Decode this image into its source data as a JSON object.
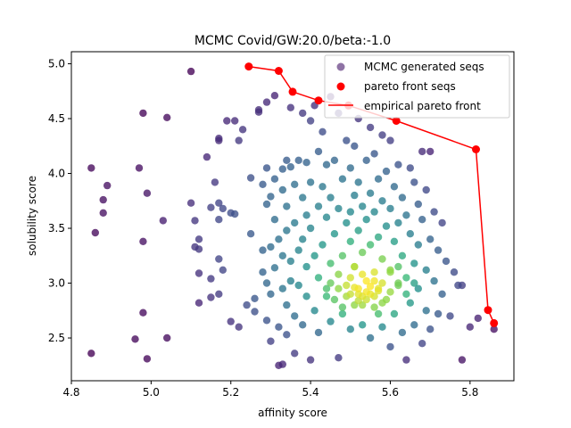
{
  "chart_data": {
    "type": "scatter",
    "title": "MCMC Covid/GW:20.0/beta:-1.0",
    "xlabel": "affinity score",
    "ylabel": "solubility score",
    "xlim": [
      4.8,
      5.91
    ],
    "ylim": [
      2.11,
      5.11
    ],
    "xticks": [
      "4.8",
      "5.0",
      "5.2",
      "5.4",
      "5.6",
      "5.8"
    ],
    "yticks": [
      "2.5",
      "3.0",
      "3.5",
      "4.0",
      "4.5",
      "5.0"
    ],
    "legend_position": "top-right",
    "grid": false,
    "colormap": "viridis",
    "colors": {
      "pareto": "#ff0000",
      "legend_scatter": "#7b5a95",
      "axes": "#000000"
    },
    "series": [
      {
        "name": "MCMC generated seqs",
        "kind": "scatter",
        "color_by_density": true,
        "points": [
          [
            4.85,
            4.05
          ],
          [
            4.86,
            3.46
          ],
          [
            4.85,
            2.36
          ],
          [
            4.88,
            3.76
          ],
          [
            4.88,
            3.64
          ],
          [
            4.89,
            3.89
          ],
          [
            4.96,
            2.49
          ],
          [
            4.97,
            4.05
          ],
          [
            4.98,
            4.55
          ],
          [
            4.98,
            3.38
          ],
          [
            4.98,
            2.73
          ],
          [
            4.99,
            3.82
          ],
          [
            4.99,
            2.31
          ],
          [
            5.03,
            3.57
          ],
          [
            5.04,
            4.51
          ],
          [
            5.04,
            2.5
          ],
          [
            5.1,
            4.93
          ],
          [
            5.1,
            3.73
          ],
          [
            5.11,
            3.57
          ],
          [
            5.11,
            3.33
          ],
          [
            5.12,
            3.31
          ],
          [
            5.12,
            2.82
          ],
          [
            5.12,
            3.09
          ],
          [
            5.12,
            3.4
          ],
          [
            5.14,
            4.15
          ],
          [
            5.15,
            3.04
          ],
          [
            5.15,
            3.69
          ],
          [
            5.15,
            2.87
          ],
          [
            5.16,
            3.92
          ],
          [
            5.17,
            4.32
          ],
          [
            5.17,
            4.3
          ],
          [
            5.17,
            3.73
          ],
          [
            5.17,
            3.58
          ],
          [
            5.17,
            3.22
          ],
          [
            5.17,
            2.9
          ],
          [
            5.18,
            3.68
          ],
          [
            5.18,
            3.12
          ],
          [
            5.19,
            4.48
          ],
          [
            5.2,
            2.65
          ],
          [
            5.2,
            3.64
          ],
          [
            5.21,
            4.48
          ],
          [
            5.21,
            3.63
          ],
          [
            5.22,
            4.3
          ],
          [
            5.22,
            2.6
          ],
          [
            5.23,
            4.4
          ],
          [
            5.24,
            2.8
          ],
          [
            5.25,
            3.96
          ],
          [
            5.25,
            3.45
          ],
          [
            5.26,
            2.86
          ],
          [
            5.26,
            2.74
          ],
          [
            5.27,
            4.58
          ],
          [
            5.27,
            4.56
          ],
          [
            5.28,
            3.9
          ],
          [
            5.28,
            3.3
          ],
          [
            5.28,
            3.1
          ],
          [
            5.29,
            4.65
          ],
          [
            5.29,
            4.05
          ],
          [
            5.29,
            3.72
          ],
          [
            5.29,
            3.0
          ],
          [
            5.29,
            2.66
          ],
          [
            5.3,
            3.79
          ],
          [
            5.3,
            3.33
          ],
          [
            5.3,
            2.9
          ],
          [
            5.3,
            2.47
          ],
          [
            5.31,
            4.71
          ],
          [
            5.31,
            3.95
          ],
          [
            5.31,
            3.58
          ],
          [
            5.31,
            3.14
          ],
          [
            5.32,
            2.25
          ],
          [
            5.32,
            2.6
          ],
          [
            5.32,
            3.4
          ],
          [
            5.33,
            4.04
          ],
          [
            5.33,
            3.85
          ],
          [
            5.33,
            3.25
          ],
          [
            5.33,
            2.95
          ],
          [
            5.33,
            2.26
          ],
          [
            5.34,
            4.12
          ],
          [
            5.34,
            3.7
          ],
          [
            5.34,
            3.48
          ],
          [
            5.34,
            2.8
          ],
          [
            5.34,
            2.53
          ],
          [
            5.35,
            4.6
          ],
          [
            5.35,
            4.06
          ],
          [
            5.35,
            3.2
          ],
          [
            5.35,
            3.02
          ],
          [
            5.36,
            3.9
          ],
          [
            5.36,
            3.55
          ],
          [
            5.36,
            2.7
          ],
          [
            5.36,
            2.36
          ],
          [
            5.37,
            4.12
          ],
          [
            5.37,
            3.3
          ],
          [
            5.37,
            2.98
          ],
          [
            5.38,
            4.55
          ],
          [
            5.38,
            3.78
          ],
          [
            5.38,
            3.4
          ],
          [
            5.38,
            2.62
          ],
          [
            5.39,
            4.1
          ],
          [
            5.39,
            3.62
          ],
          [
            5.39,
            3.15
          ],
          [
            5.39,
            2.88
          ],
          [
            5.4,
            4.48
          ],
          [
            5.4,
            3.92
          ],
          [
            5.4,
            3.5
          ],
          [
            5.4,
            2.3
          ],
          [
            5.41,
            4.62
          ],
          [
            5.41,
            3.25
          ],
          [
            5.41,
            2.75
          ],
          [
            5.42,
            4.2
          ],
          [
            5.42,
            3.7
          ],
          [
            5.42,
            3.05
          ],
          [
            5.42,
            2.55
          ],
          [
            5.43,
            4.38
          ],
          [
            5.43,
            3.88
          ],
          [
            5.43,
            3.35
          ],
          [
            5.44,
            4.08
          ],
          [
            5.44,
            3.6
          ],
          [
            5.44,
            2.95
          ],
          [
            5.45,
            4.7
          ],
          [
            5.45,
            3.78
          ],
          [
            5.45,
            3.18
          ],
          [
            5.45,
            2.65
          ],
          [
            5.46,
            4.12
          ],
          [
            5.46,
            3.45
          ],
          [
            5.46,
            2.85
          ],
          [
            5.47,
            4.55
          ],
          [
            5.47,
            3.68
          ],
          [
            5.47,
            3.08
          ],
          [
            5.47,
            2.32
          ],
          [
            5.48,
            3.95
          ],
          [
            5.48,
            3.25
          ],
          [
            5.48,
            2.72
          ],
          [
            5.49,
            4.3
          ],
          [
            5.49,
            3.55
          ],
          [
            5.49,
            2.98
          ],
          [
            5.5,
            4.05
          ],
          [
            5.5,
            3.65
          ],
          [
            5.5,
            3.38
          ],
          [
            5.5,
            2.58
          ],
          [
            5.51,
            4.25
          ],
          [
            5.51,
            3.8
          ],
          [
            5.51,
            3.15
          ],
          [
            5.51,
            2.8
          ],
          [
            5.52,
            4.5
          ],
          [
            5.52,
            3.92
          ],
          [
            5.52,
            3.48
          ],
          [
            5.52,
            2.9
          ],
          [
            5.53,
            3.7
          ],
          [
            5.53,
            3.28
          ],
          [
            5.53,
            2.62
          ],
          [
            5.54,
            4.12
          ],
          [
            5.54,
            3.58
          ],
          [
            5.54,
            3.02
          ],
          [
            5.55,
            4.42
          ],
          [
            5.55,
            3.82
          ],
          [
            5.55,
            3.35
          ],
          [
            5.55,
            2.5
          ],
          [
            5.56,
            4.18
          ],
          [
            5.56,
            3.65
          ],
          [
            5.56,
            3.1
          ],
          [
            5.56,
            2.78
          ],
          [
            5.57,
            3.95
          ],
          [
            5.57,
            3.42
          ],
          [
            5.57,
            2.95
          ],
          [
            5.58,
            4.35
          ],
          [
            5.58,
            3.75
          ],
          [
            5.58,
            3.22
          ],
          [
            5.58,
            2.6
          ],
          [
            5.59,
            4.02
          ],
          [
            5.59,
            3.52
          ],
          [
            5.59,
            2.85
          ],
          [
            5.6,
            4.3
          ],
          [
            5.6,
            3.68
          ],
          [
            5.6,
            3.12
          ],
          [
            5.6,
            2.42
          ],
          [
            5.61,
            3.88
          ],
          [
            5.61,
            3.38
          ],
          [
            5.61,
            2.72
          ],
          [
            5.62,
            4.08
          ],
          [
            5.62,
            3.55
          ],
          [
            5.62,
            2.98
          ],
          [
            5.63,
            3.78
          ],
          [
            5.63,
            3.25
          ],
          [
            5.63,
            2.55
          ],
          [
            5.64,
            3.62
          ],
          [
            5.64,
            3.05
          ],
          [
            5.64,
            2.3
          ],
          [
            5.65,
            4.05
          ],
          [
            5.65,
            3.45
          ],
          [
            5.65,
            2.82
          ],
          [
            5.66,
            3.92
          ],
          [
            5.66,
            3.18
          ],
          [
            5.66,
            2.62
          ],
          [
            5.67,
            3.72
          ],
          [
            5.67,
            3.35
          ],
          [
            5.67,
            2.95
          ],
          [
            5.68,
            4.2
          ],
          [
            5.68,
            3.58
          ],
          [
            5.68,
            2.45
          ],
          [
            5.69,
            3.85
          ],
          [
            5.69,
            3.12
          ],
          [
            5.69,
            2.75
          ],
          [
            5.7,
            4.2
          ],
          [
            5.7,
            3.4
          ],
          [
            5.7,
            2.58
          ],
          [
            5.71,
            3.65
          ],
          [
            5.71,
            3.02
          ],
          [
            5.72,
            3.3
          ],
          [
            5.72,
            2.72
          ],
          [
            5.73,
            3.55
          ],
          [
            5.73,
            2.9
          ],
          [
            5.74,
            3.2
          ],
          [
            5.75,
            2.7
          ],
          [
            5.76,
            3.1
          ],
          [
            5.77,
            2.98
          ],
          [
            5.78,
            2.3
          ],
          [
            5.78,
            2.98
          ],
          [
            5.8,
            2.6
          ],
          [
            5.82,
            2.68
          ],
          [
            5.86,
            2.58
          ],
          [
            5.5,
            2.9
          ],
          [
            5.52,
            2.95
          ],
          [
            5.53,
            2.88
          ],
          [
            5.54,
            2.92
          ],
          [
            5.54,
            2.85
          ],
          [
            5.55,
            2.9
          ],
          [
            5.55,
            2.97
          ],
          [
            5.56,
            2.88
          ],
          [
            5.53,
            2.8
          ],
          [
            5.51,
            2.96
          ],
          [
            5.57,
            2.93
          ],
          [
            5.52,
            2.84
          ],
          [
            5.58,
            3.0
          ],
          [
            5.49,
            2.88
          ],
          [
            5.56,
            3.02
          ],
          [
            5.5,
            3.05
          ],
          [
            5.6,
            2.92
          ],
          [
            5.47,
            2.95
          ],
          [
            5.58,
            2.82
          ],
          [
            5.53,
            3.08
          ],
          [
            5.62,
            3.0
          ],
          [
            5.45,
            3.0
          ],
          [
            5.6,
            3.1
          ],
          [
            5.48,
            2.78
          ],
          [
            5.64,
            2.9
          ],
          [
            5.44,
            2.88
          ],
          [
            5.57,
            2.72
          ],
          [
            5.62,
            3.15
          ],
          [
            5.51,
            3.15
          ],
          [
            5.66,
            3.0
          ]
        ]
      },
      {
        "name": "pareto front seqs",
        "kind": "scatter",
        "points": [
          [
            5.245,
            4.975
          ],
          [
            5.32,
            4.935
          ],
          [
            5.355,
            4.745
          ],
          [
            5.42,
            4.665
          ],
          [
            5.495,
            4.62
          ],
          [
            5.615,
            4.48
          ],
          [
            5.815,
            4.22
          ],
          [
            5.845,
            2.755
          ],
          [
            5.86,
            2.635
          ]
        ]
      },
      {
        "name": "empirical pareto front",
        "kind": "line",
        "points": [
          [
            5.245,
            4.975
          ],
          [
            5.32,
            4.935
          ],
          [
            5.355,
            4.745
          ],
          [
            5.42,
            4.665
          ],
          [
            5.495,
            4.62
          ],
          [
            5.615,
            4.48
          ],
          [
            5.815,
            4.22
          ],
          [
            5.845,
            2.755
          ],
          [
            5.86,
            2.635
          ]
        ]
      }
    ]
  }
}
